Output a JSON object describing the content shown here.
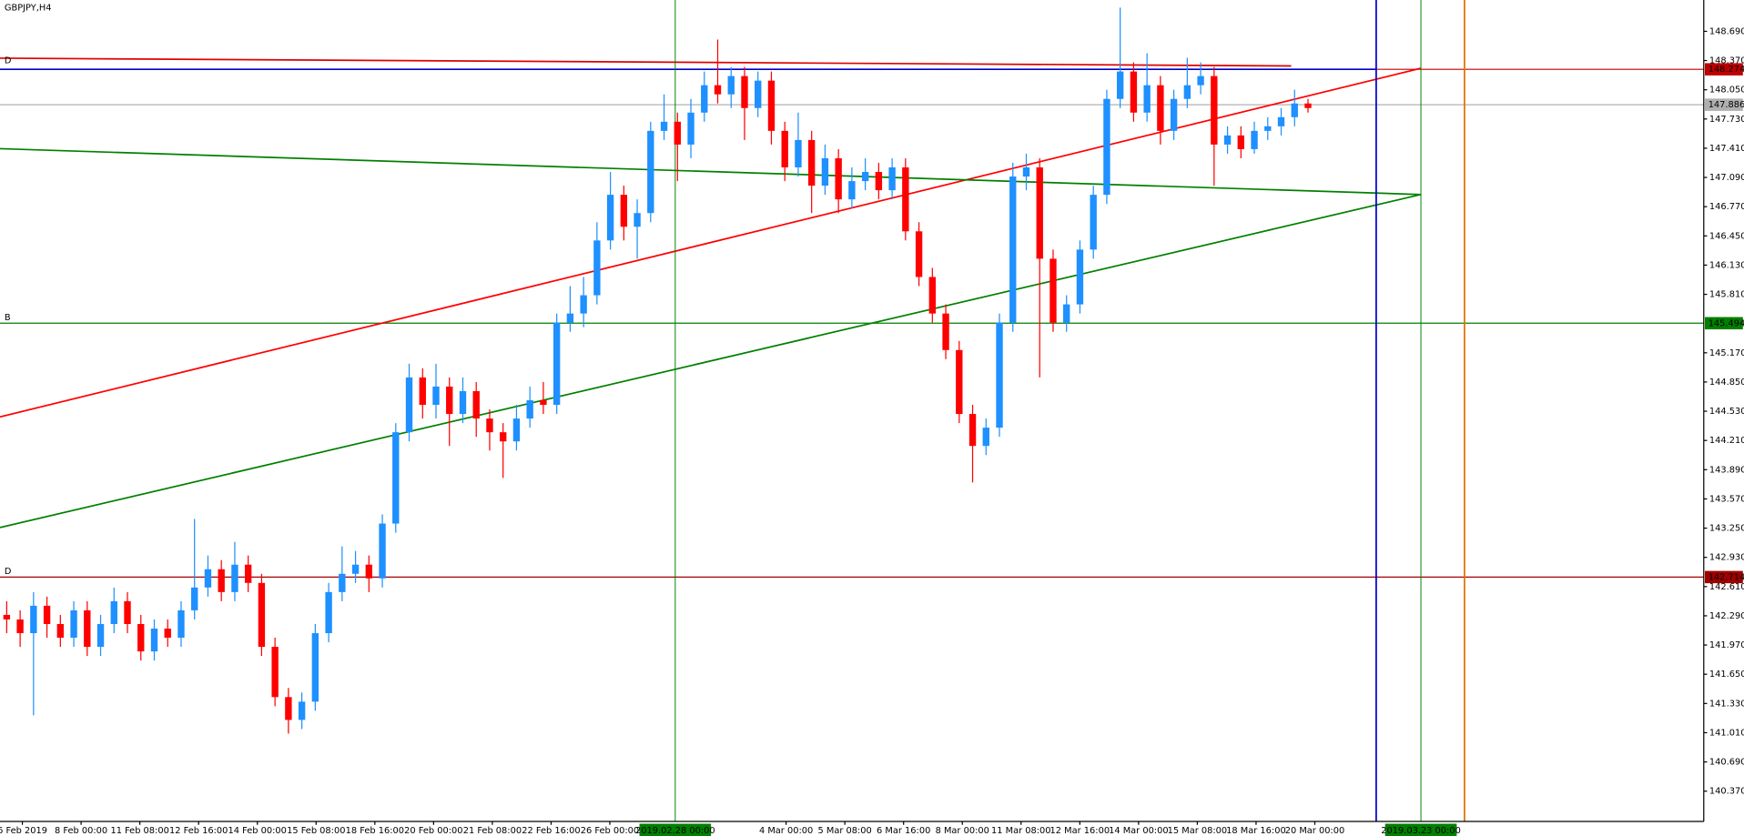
{
  "chart_data": {
    "type": "candlestick",
    "title": "GBPJPY,H4",
    "up_color": "#1e90ff",
    "down_color": "#ff0000",
    "ylim": [
      140.038,
      149.033
    ],
    "yticks": [
      {
        "value": 140.37,
        "label": "140.370"
      },
      {
        "value": 140.69,
        "label": "140.690"
      },
      {
        "value": 141.01,
        "label": "141.010"
      },
      {
        "value": 141.33,
        "label": "141.330"
      },
      {
        "value": 141.65,
        "label": "141.650"
      },
      {
        "value": 141.97,
        "label": "141.970"
      },
      {
        "value": 142.29,
        "label": "142.290"
      },
      {
        "value": 142.61,
        "label": "142.610"
      },
      {
        "value": 142.93,
        "label": "142.930"
      },
      {
        "value": 143.25,
        "label": "143.250"
      },
      {
        "value": 143.57,
        "label": "143.570"
      },
      {
        "value": 143.89,
        "label": "143.890"
      },
      {
        "value": 144.21,
        "label": "144.210"
      },
      {
        "value": 144.53,
        "label": "144.530"
      },
      {
        "value": 144.85,
        "label": "144.850"
      },
      {
        "value": 145.17,
        "label": "145.170"
      },
      {
        "value": 145.81,
        "label": "145.810"
      },
      {
        "value": 146.13,
        "label": "146.130"
      },
      {
        "value": 146.45,
        "label": "146.450"
      },
      {
        "value": 146.77,
        "label": "146.770"
      },
      {
        "value": 147.09,
        "label": "147.090"
      },
      {
        "value": 147.41,
        "label": "147.410"
      },
      {
        "value": 147.73,
        "label": "147.730"
      },
      {
        "value": 148.05,
        "label": "148.050"
      },
      {
        "value": 148.37,
        "label": "148.370"
      },
      {
        "value": 148.69,
        "label": "148.690"
      }
    ],
    "x_labels": [
      "6 Feb 2019",
      "8 Feb 00:00",
      "11 Feb 08:00",
      "12 Feb 16:00",
      "14 Feb 00:00",
      "15 Feb 08:00",
      "18 Feb 16:00",
      "20 Feb 00:00",
      "21 Feb 08:00",
      "22 Feb 16:00",
      "26 Feb 00:00",
      null,
      null,
      "4 Mar 00:00",
      "5 Mar 08:00",
      "6 Mar 16:00",
      "8 Mar 00:00",
      "11 Mar 08:00",
      "12 Mar 16:00",
      "14 Mar 00:00",
      "15 Mar 08:00",
      "18 Mar 16:00",
      "20 Mar 00:00"
    ],
    "open": [
      142.3,
      142.25,
      142.1,
      142.4,
      142.2,
      142.05,
      142.35,
      141.95,
      142.2,
      142.45,
      142.2,
      141.9,
      142.15,
      142.05,
      142.35,
      142.6,
      142.8,
      142.55,
      142.85,
      142.65,
      141.95,
      141.4,
      141.15,
      141.35,
      142.1,
      142.55,
      142.75,
      142.85,
      142.7,
      143.3,
      144.3,
      144.9,
      144.6,
      144.8,
      144.5,
      144.75,
      144.45,
      144.3,
      144.2,
      144.45,
      144.65,
      144.6,
      145.5,
      145.6,
      145.8,
      146.4,
      146.9,
      146.55,
      146.7,
      147.6,
      147.7,
      147.45,
      147.8,
      148.1,
      148.0,
      148.2,
      147.85,
      148.15,
      147.6,
      147.2,
      147.5,
      147.0,
      147.3,
      146.85,
      147.05,
      147.15,
      146.95,
      147.2,
      146.5,
      146.0,
      145.6,
      145.2,
      144.5,
      144.15,
      144.35,
      145.5,
      147.1,
      147.2,
      146.2,
      145.5,
      145.7,
      146.3,
      146.9,
      147.95,
      148.25,
      147.8,
      148.1,
      147.6,
      147.95,
      148.1,
      148.2,
      147.45,
      147.55,
      147.4,
      147.6,
      147.65,
      147.75,
      147.9
    ],
    "high": [
      142.45,
      142.35,
      142.55,
      142.5,
      142.3,
      142.45,
      142.45,
      142.3,
      142.6,
      142.55,
      142.3,
      142.25,
      142.25,
      142.45,
      143.35,
      142.95,
      142.9,
      143.1,
      142.95,
      142.75,
      142.05,
      141.5,
      141.45,
      142.2,
      142.65,
      143.05,
      143.0,
      142.95,
      143.4,
      144.4,
      145.05,
      145.0,
      145.05,
      144.9,
      144.9,
      144.85,
      144.55,
      144.4,
      144.6,
      144.8,
      144.85,
      145.6,
      145.9,
      146.0,
      146.6,
      147.15,
      147.0,
      146.85,
      147.7,
      148.0,
      147.8,
      147.95,
      148.25,
      148.6,
      148.3,
      148.3,
      148.25,
      148.25,
      147.7,
      147.8,
      147.6,
      147.45,
      147.4,
      147.2,
      147.3,
      147.25,
      147.3,
      147.3,
      146.6,
      146.1,
      145.7,
      145.3,
      144.6,
      144.45,
      145.6,
      147.25,
      147.35,
      147.3,
      146.3,
      145.8,
      146.4,
      147.0,
      148.05,
      148.95,
      148.35,
      148.45,
      148.2,
      148.05,
      148.4,
      148.35,
      148.3,
      147.65,
      147.65,
      147.7,
      147.75,
      147.85,
      148.05,
      147.95
    ],
    "low": [
      142.1,
      141.95,
      141.2,
      142.05,
      141.95,
      141.95,
      141.85,
      141.85,
      142.1,
      142.1,
      141.8,
      141.8,
      141.95,
      141.95,
      142.25,
      142.5,
      142.45,
      142.45,
      142.55,
      141.85,
      141.3,
      141.0,
      141.05,
      141.25,
      142.0,
      142.45,
      142.65,
      142.55,
      142.6,
      143.2,
      144.2,
      144.45,
      144.45,
      144.15,
      144.4,
      144.25,
      144.1,
      143.8,
      144.1,
      144.35,
      144.5,
      144.5,
      145.4,
      145.45,
      145.7,
      146.3,
      146.4,
      146.2,
      146.6,
      147.5,
      147.05,
      147.3,
      147.7,
      147.9,
      147.85,
      147.5,
      147.75,
      147.45,
      147.05,
      147.1,
      146.7,
      146.9,
      146.7,
      146.75,
      146.95,
      146.85,
      146.85,
      146.4,
      145.9,
      145.5,
      145.1,
      144.4,
      143.75,
      144.05,
      144.25,
      145.4,
      146.95,
      144.9,
      145.4,
      145.4,
      145.6,
      146.2,
      146.8,
      147.85,
      147.7,
      147.7,
      147.45,
      147.5,
      147.85,
      148.0,
      147.0,
      147.35,
      147.3,
      147.35,
      147.5,
      147.55,
      147.65,
      147.8
    ],
    "close": [
      142.25,
      142.1,
      142.4,
      142.2,
      142.05,
      142.35,
      141.95,
      142.2,
      142.45,
      142.2,
      141.9,
      142.15,
      142.05,
      142.35,
      142.6,
      142.8,
      142.55,
      142.85,
      142.65,
      141.95,
      141.4,
      141.15,
      141.35,
      142.1,
      142.55,
      142.75,
      142.85,
      142.7,
      143.3,
      144.3,
      144.9,
      144.6,
      144.8,
      144.5,
      144.75,
      144.45,
      144.3,
      144.2,
      144.45,
      144.65,
      144.6,
      145.5,
      145.6,
      145.8,
      146.4,
      146.9,
      146.55,
      146.7,
      147.6,
      147.7,
      147.45,
      147.8,
      148.1,
      148.0,
      148.2,
      147.85,
      148.15,
      147.6,
      147.2,
      147.5,
      147.0,
      147.3,
      146.85,
      147.05,
      147.15,
      146.95,
      147.2,
      146.5,
      146.0,
      145.6,
      145.2,
      144.5,
      144.15,
      144.35,
      145.5,
      147.1,
      147.2,
      146.2,
      145.5,
      145.7,
      146.3,
      146.9,
      147.95,
      148.25,
      147.8,
      148.1,
      147.6,
      147.95,
      148.1,
      148.2,
      147.45,
      147.55,
      147.4,
      147.6,
      147.65,
      147.75,
      147.9,
      147.85
    ],
    "hlines": [
      {
        "value": 148.274,
        "color": "#c00000"
      },
      {
        "value": 147.886,
        "color": "#b0b0b0"
      },
      {
        "value": 145.494,
        "color": "#008000",
        "tag": "B"
      },
      {
        "value": 142.714,
        "color": "#a00000",
        "tag": "D"
      }
    ],
    "trendlines": [
      {
        "color": "#e00000",
        "y": [
          148.396,
          148.311
        ],
        "tag": "D"
      },
      {
        "color": "#0000c8",
        "y": [
          148.274,
          148.274
        ]
      },
      {
        "color": "#ff0000",
        "y": [
          144.468,
          148.286
        ]
      },
      {
        "color": "#008000",
        "y": [
          143.257,
          146.903
        ]
      },
      {
        "color": "#008000",
        "y": [
          147.405,
          146.903
        ]
      }
    ],
    "vlines": [
      {
        "color": "#008000",
        "label": "2019.02.28 00:00"
      },
      {
        "color": "#0000c8"
      },
      {
        "color": "#008000",
        "label": "2019.03.23 00:00"
      },
      {
        "color": "#e07000"
      }
    ]
  }
}
